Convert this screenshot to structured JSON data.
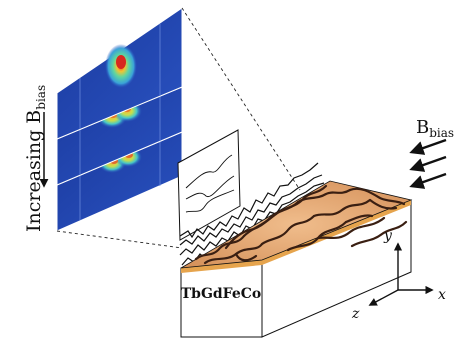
{
  "labels": {
    "increasing_main": "Increasing B",
    "increasing_sub": "bias",
    "bias_main": "B",
    "bias_sub": "bias",
    "material": "TbGdFeCo",
    "axis_x": "x",
    "axis_y": "y",
    "axis_z": "z"
  },
  "icons": {
    "field_arrow": "bias-field-arrow-icon",
    "axis_arrow": "axis-arrow-icon"
  },
  "colors": {
    "heatmap_low": "#1a3fa8",
    "heatmap_mid": "#3fc9d0",
    "heatmap_high": "#e8302a",
    "film_light": "#e8b07f",
    "film_dark": "#3a1f12",
    "stripe": "#e6a44d"
  },
  "panels": [
    {
      "index": 1,
      "peaks": "single"
    },
    {
      "index": 2,
      "peaks": "double"
    },
    {
      "index": 3,
      "peaks": "double"
    }
  ]
}
